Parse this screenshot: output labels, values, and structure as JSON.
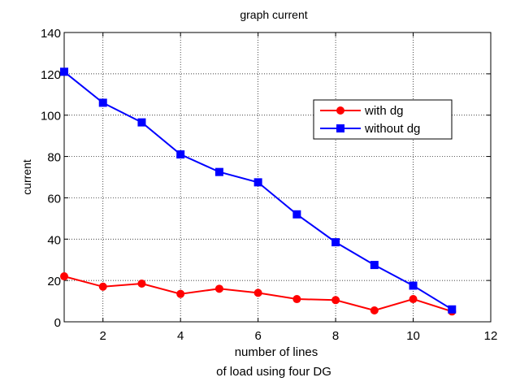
{
  "chart_data": {
    "type": "line",
    "title": "graph current",
    "xlabel": "number of lines",
    "caption": "of load using four DG",
    "ylabel": "current",
    "xlim": [
      1,
      12
    ],
    "ylim": [
      0,
      140
    ],
    "xticks": [
      2,
      4,
      6,
      8,
      10,
      12
    ],
    "yticks": [
      0,
      20,
      40,
      60,
      80,
      100,
      120,
      140
    ],
    "grid": true,
    "legend_position": "upper-right",
    "series": [
      {
        "name": "with dg",
        "color": "#ff0000",
        "marker": "circle",
        "x": [
          1,
          2,
          3,
          4,
          5,
          6,
          7,
          8,
          9,
          10,
          11
        ],
        "values": [
          22,
          17,
          18.5,
          13.5,
          16,
          14,
          11,
          10.5,
          5.5,
          11,
          5
        ]
      },
      {
        "name": "without dg",
        "color": "#0000ff",
        "marker": "square",
        "x": [
          1,
          2,
          3,
          4,
          5,
          6,
          7,
          8,
          9,
          10,
          11
        ],
        "values": [
          121,
          106,
          96.5,
          81,
          72.5,
          67.5,
          52,
          38.5,
          27.5,
          17.5,
          6
        ]
      }
    ]
  }
}
